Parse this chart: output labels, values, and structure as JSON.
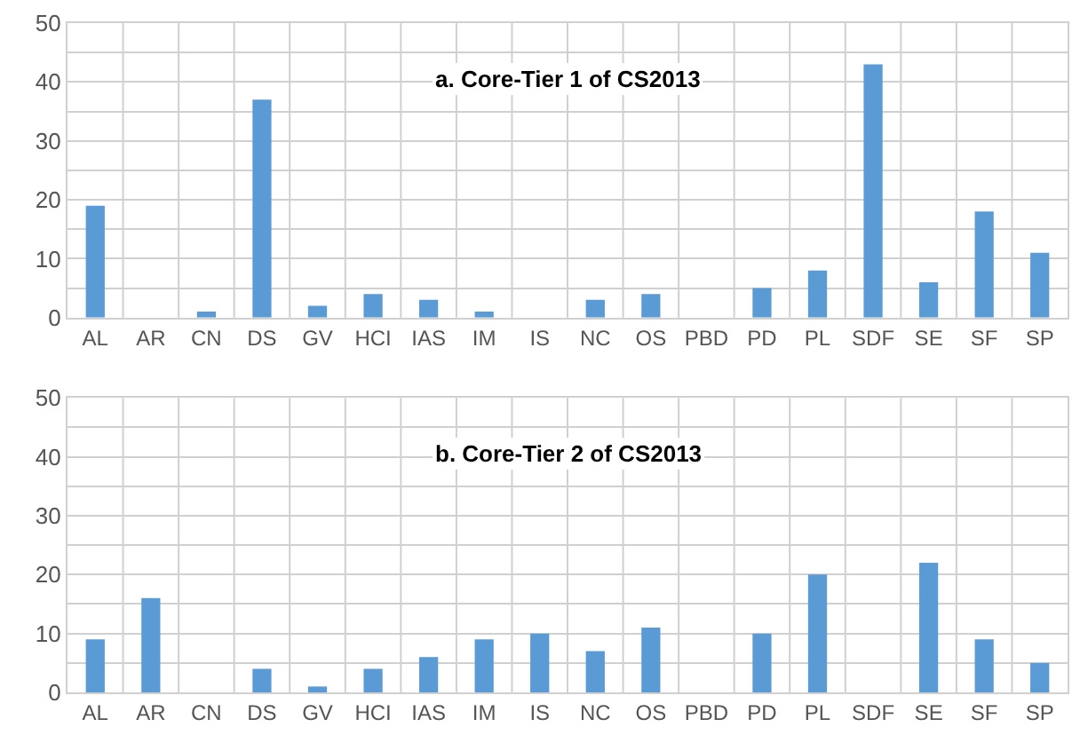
{
  "chart_data": [
    {
      "type": "bar",
      "title": "a. Core-Tier 1 of CS2013",
      "categories": [
        "AL",
        "AR",
        "CN",
        "DS",
        "GV",
        "HCI",
        "IAS",
        "IM",
        "IS",
        "NC",
        "OS",
        "PBD",
        "PD",
        "PL",
        "SDF",
        "SE",
        "SF",
        "SP"
      ],
      "values": [
        19,
        0,
        1,
        37,
        2,
        4,
        3,
        1,
        0,
        3,
        4,
        0,
        5,
        8,
        43,
        6,
        18,
        11
      ],
      "color": "#5b9bd5",
      "ylim": [
        0,
        50
      ],
      "yticks": [
        0,
        {
          "value": 5,
          "label": null
        },
        10,
        {
          "value": 15,
          "label": null
        },
        20,
        {
          "value": 25,
          "label": null
        },
        30,
        {
          "value": 35,
          "label": null
        },
        40,
        {
          "value": 45,
          "label": null
        },
        50
      ],
      "grid": true
    },
    {
      "type": "bar",
      "title": "b. Core-Tier 2 of CS2013",
      "categories": [
        "AL",
        "AR",
        "CN",
        "DS",
        "GV",
        "HCI",
        "IAS",
        "IM",
        "IS",
        "NC",
        "OS",
        "PBD",
        "PD",
        "PL",
        "SDF",
        "SE",
        "SF",
        "SP"
      ],
      "values": [
        9,
        16,
        0,
        4,
        1,
        4,
        6,
        9,
        10,
        7,
        11,
        0,
        10,
        20,
        0,
        22,
        9,
        5
      ],
      "color": "#5b9bd5",
      "ylim": [
        0,
        50
      ],
      "yticks": [
        0,
        {
          "value": 5,
          "label": null
        },
        10,
        {
          "value": 15,
          "label": null
        },
        20,
        {
          "value": 25,
          "label": null
        },
        30,
        {
          "value": 35,
          "label": null
        },
        40,
        {
          "value": 45,
          "label": null
        },
        50
      ],
      "grid": true
    }
  ]
}
